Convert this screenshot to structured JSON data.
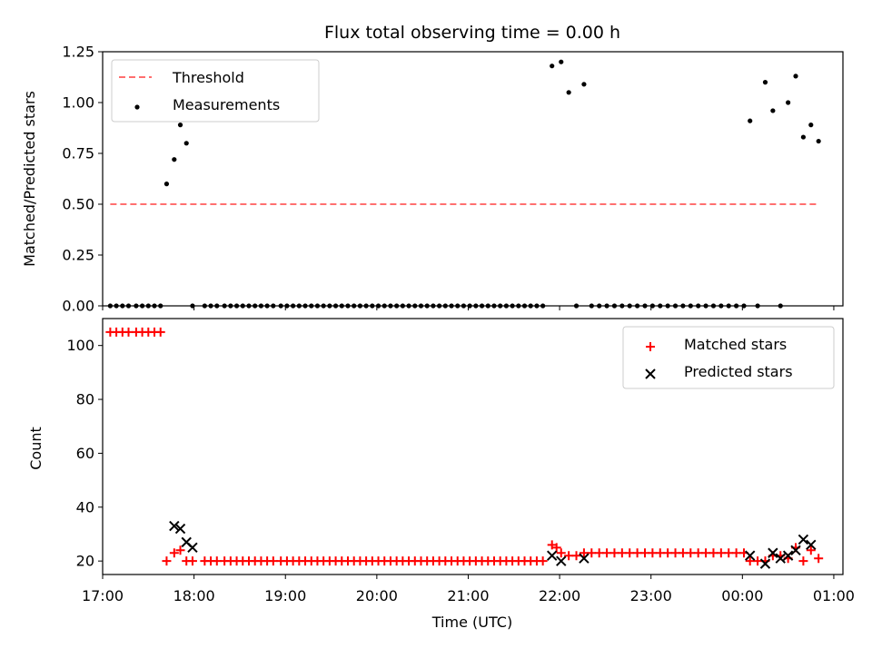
{
  "chart_data": [
    {
      "type": "scatter",
      "title": "Flux total observing time = 0.00 h",
      "xlabel": "",
      "ylabel": "Matched/Predicted stars",
      "xlim": [
        "17:00",
        "01:06"
      ],
      "ylim": [
        0,
        1.25
      ],
      "yticks": [
        "0.00",
        "0.25",
        "0.50",
        "0.75",
        "1.00",
        "1.25"
      ],
      "xticks_shown": false,
      "grid": false,
      "legend_position": "top-left",
      "series": [
        {
          "name": "Threshold",
          "kind": "dashed-line",
          "color": "#ff6f6f",
          "x": [
            "17:05",
            "00:50"
          ],
          "y": [
            0.5,
            0.5
          ]
        },
        {
          "name": "Measurements",
          "kind": "scatter",
          "color": "#000000",
          "x": [
            "17:05",
            "17:09",
            "17:13",
            "17:17",
            "17:22",
            "17:26",
            "17:30",
            "17:34",
            "17:38",
            "17:42",
            "17:47",
            "17:51",
            "17:55",
            "17:59",
            "18:07",
            "18:11",
            "18:15",
            "18:20",
            "18:24",
            "18:28",
            "18:32",
            "18:36",
            "18:40",
            "18:44",
            "18:48",
            "18:52",
            "18:57",
            "19:01",
            "19:05",
            "19:09",
            "19:13",
            "19:17",
            "19:21",
            "19:25",
            "19:29",
            "19:33",
            "19:37",
            "19:41",
            "19:45",
            "19:49",
            "19:53",
            "19:57",
            "20:01",
            "20:05",
            "20:09",
            "20:13",
            "20:17",
            "20:21",
            "20:25",
            "20:29",
            "20:33",
            "20:37",
            "20:41",
            "20:45",
            "20:49",
            "20:53",
            "20:57",
            "21:01",
            "21:05",
            "21:09",
            "21:13",
            "21:17",
            "21:21",
            "21:25",
            "21:29",
            "21:33",
            "21:37",
            "21:41",
            "21:45",
            "21:49",
            "21:55",
            "22:01",
            "22:06",
            "22:11",
            "22:16",
            "22:21",
            "22:26",
            "22:31",
            "22:36",
            "22:41",
            "22:46",
            "22:51",
            "22:56",
            "23:01",
            "23:06",
            "23:11",
            "23:16",
            "23:21",
            "23:26",
            "23:31",
            "23:36",
            "23:41",
            "23:46",
            "23:51",
            "23:56",
            "00:01",
            "00:05",
            "00:10",
            "00:15",
            "00:20",
            "00:25",
            "00:30",
            "00:35",
            "00:40",
            "00:45",
            "00:50"
          ],
          "y": [
            0,
            0,
            0,
            0,
            0,
            0,
            0,
            0,
            0,
            0.6,
            0.72,
            0.89,
            0.8,
            0,
            0,
            0,
            0,
            0,
            0,
            0,
            0,
            0,
            0,
            0,
            0,
            0,
            0,
            0,
            0,
            0,
            0,
            0,
            0,
            0,
            0,
            0,
            0,
            0,
            0,
            0,
            0,
            0,
            0,
            0,
            0,
            0,
            0,
            0,
            0,
            0,
            0,
            0,
            0,
            0,
            0,
            0,
            0,
            0,
            0,
            0,
            0,
            0,
            0,
            0,
            0,
            0,
            0,
            0,
            0,
            0,
            1.18,
            1.2,
            1.05,
            0,
            1.09,
            0,
            0,
            0,
            0,
            0,
            0,
            0,
            0,
            0,
            0,
            0,
            0,
            0,
            0,
            0,
            0,
            0,
            0,
            0,
            0,
            0,
            0.91,
            0,
            1.1,
            0.96,
            0,
            1.0,
            1.13,
            0.83,
            0.89,
            0.81
          ]
        }
      ]
    },
    {
      "type": "scatter",
      "title": "",
      "xlabel": "Time (UTC)",
      "ylabel": "Count",
      "xlim": [
        "17:00",
        "01:06"
      ],
      "ylim": [
        15,
        110
      ],
      "yticks": [
        "20",
        "40",
        "60",
        "80",
        "100"
      ],
      "xticks": [
        "17:00",
        "18:00",
        "19:00",
        "20:00",
        "21:00",
        "22:00",
        "23:00",
        "00:00",
        "01:00"
      ],
      "grid": false,
      "legend_position": "top-right",
      "series": [
        {
          "name": "Matched stars",
          "marker": "+",
          "color": "#ff0000",
          "x": [
            "17:05",
            "17:09",
            "17:13",
            "17:17",
            "17:22",
            "17:26",
            "17:30",
            "17:34",
            "17:38",
            "17:42",
            "17:47",
            "17:51",
            "17:55",
            "17:59",
            "18:07",
            "18:11",
            "18:15",
            "18:20",
            "18:24",
            "18:28",
            "18:32",
            "18:36",
            "18:40",
            "18:44",
            "18:48",
            "18:52",
            "18:57",
            "19:01",
            "19:05",
            "19:09",
            "19:13",
            "19:17",
            "19:21",
            "19:25",
            "19:29",
            "19:33",
            "19:37",
            "19:41",
            "19:45",
            "19:49",
            "19:53",
            "19:57",
            "20:01",
            "20:05",
            "20:09",
            "20:13",
            "20:17",
            "20:21",
            "20:25",
            "20:29",
            "20:33",
            "20:37",
            "20:41",
            "20:45",
            "20:49",
            "20:53",
            "20:57",
            "21:01",
            "21:05",
            "21:09",
            "21:13",
            "21:17",
            "21:21",
            "21:25",
            "21:29",
            "21:33",
            "21:37",
            "21:41",
            "21:45",
            "21:49",
            "21:55",
            "21:58",
            "22:01",
            "22:06",
            "22:11",
            "22:16",
            "22:21",
            "22:26",
            "22:31",
            "22:36",
            "22:41",
            "22:46",
            "22:51",
            "22:56",
            "23:01",
            "23:06",
            "23:11",
            "23:16",
            "23:21",
            "23:26",
            "23:31",
            "23:36",
            "23:41",
            "23:46",
            "23:51",
            "23:56",
            "00:01",
            "00:05",
            "00:10",
            "00:15",
            "00:20",
            "00:25",
            "00:30",
            "00:35",
            "00:40",
            "00:45",
            "00:50"
          ],
          "y": [
            105,
            105,
            105,
            105,
            105,
            105,
            105,
            105,
            105,
            20,
            23,
            24,
            20,
            20,
            20,
            20,
            20,
            20,
            20,
            20,
            20,
            20,
            20,
            20,
            20,
            20,
            20,
            20,
            20,
            20,
            20,
            20,
            20,
            20,
            20,
            20,
            20,
            20,
            20,
            20,
            20,
            20,
            20,
            20,
            20,
            20,
            20,
            20,
            20,
            20,
            20,
            20,
            20,
            20,
            20,
            20,
            20,
            20,
            20,
            20,
            20,
            20,
            20,
            20,
            20,
            20,
            20,
            20,
            20,
            20,
            26,
            25,
            23,
            22,
            22,
            23,
            23,
            23,
            23,
            23,
            23,
            23,
            23,
            23,
            23,
            23,
            23,
            23,
            23,
            23,
            23,
            23,
            23,
            23,
            23,
            23,
            23,
            20,
            20,
            20,
            22,
            22,
            21,
            25,
            20,
            24,
            21
          ]
        },
        {
          "name": "Predicted stars",
          "marker": "x",
          "color": "#000000",
          "x": [
            "17:47",
            "17:51",
            "17:55",
            "17:59",
            "21:55",
            "22:01",
            "22:16",
            "00:05",
            "00:15",
            "00:20",
            "00:25",
            "00:30",
            "00:35",
            "00:40",
            "00:45"
          ],
          "y": [
            33,
            32,
            27,
            25,
            22,
            20,
            21,
            22,
            19,
            23,
            21,
            22,
            24,
            28,
            26
          ]
        }
      ]
    }
  ]
}
